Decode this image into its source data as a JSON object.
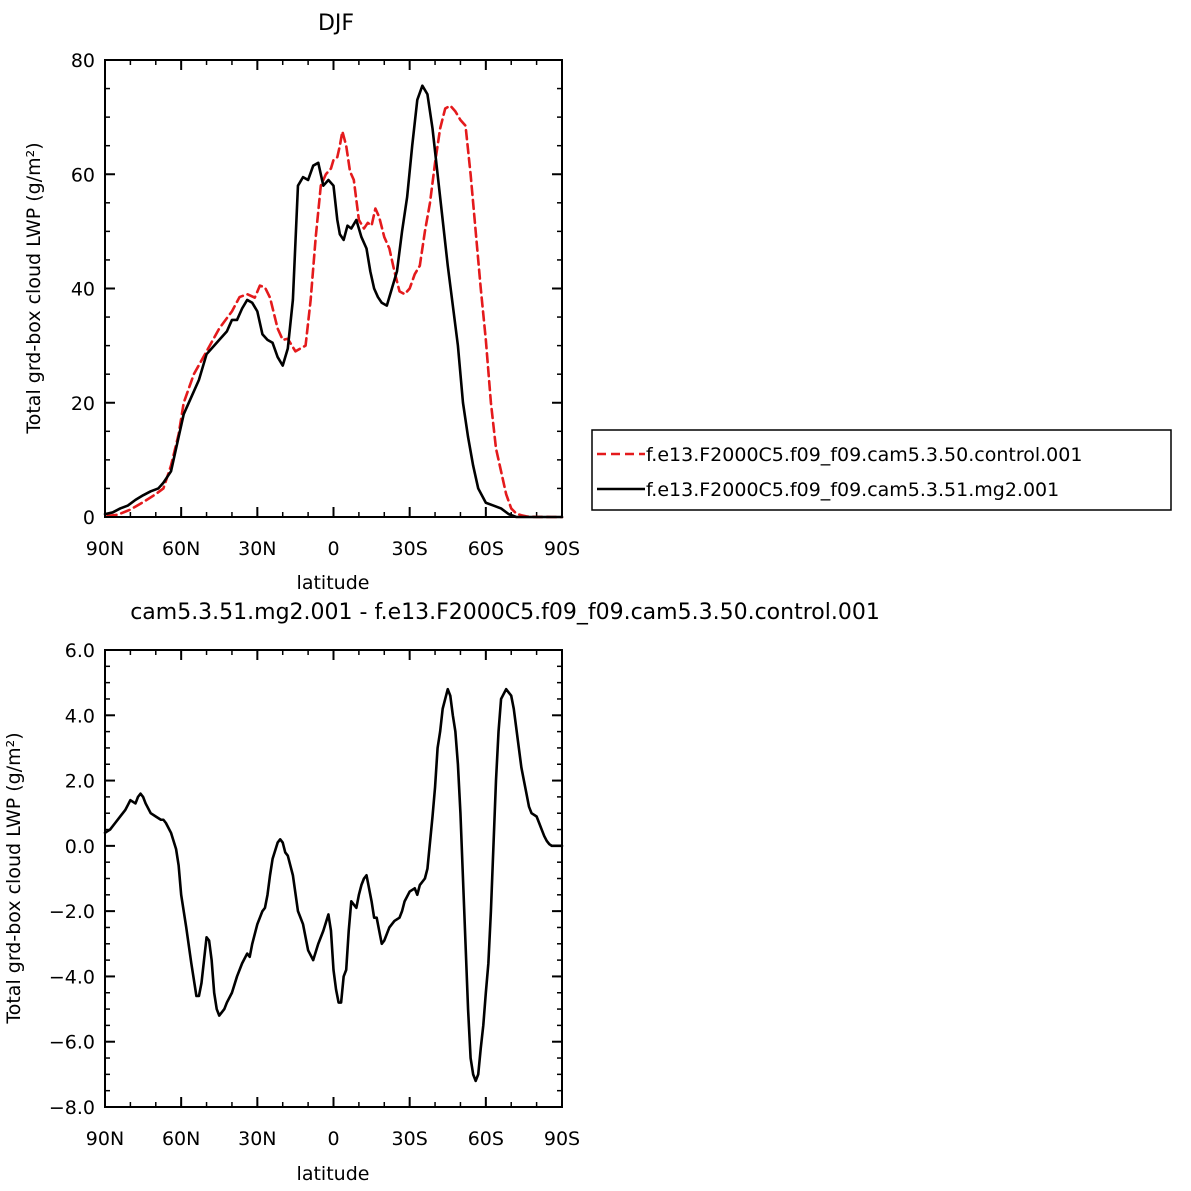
{
  "chart_data": [
    {
      "type": "line",
      "title": "DJF",
      "xlabel": "latitude",
      "ylabel": "Total grd-box cloud LWP (g/m²)",
      "xlim": [
        -90,
        90
      ],
      "ylim": [
        0,
        80
      ],
      "x_ticks": [
        -90,
        -60,
        -30,
        0,
        30,
        60,
        90
      ],
      "x_tick_labels": [
        "90N",
        "60N",
        "30N",
        "0",
        "30S",
        "60S",
        "90S"
      ],
      "y_ticks": [
        0,
        20,
        40,
        60,
        80
      ],
      "y_tick_labels": [
        "0",
        "20",
        "40",
        "60",
        "80"
      ],
      "legend_position": "right",
      "series": [
        {
          "name": "f.e13.F2000C5.f09_f09.cam5.3.50.control.001",
          "color": "#e41a1c",
          "dash": "dashed",
          "x": [
            -89,
            -85,
            -80,
            -75,
            -70,
            -67,
            -64,
            -61,
            -59,
            -55,
            -50,
            -45,
            -40,
            -37,
            -34,
            -31,
            -29,
            -27,
            -25,
            -22,
            -20,
            -18,
            -15,
            -13,
            -11,
            -9,
            -7,
            -5,
            -3,
            -1,
            0,
            1.5,
            2.5,
            3.5,
            5,
            6.5,
            8,
            10,
            12,
            13.5,
            15,
            16.5,
            18,
            20,
            22,
            24,
            26,
            28,
            30,
            32,
            34,
            36,
            38,
            40,
            42,
            44,
            46,
            48,
            50,
            52,
            54,
            56,
            58,
            60,
            62,
            64,
            66,
            68,
            70,
            72,
            74,
            76,
            78,
            80,
            82,
            84,
            86,
            88,
            90
          ],
          "y": [
            0.2,
            0.4,
            1.3,
            2.6,
            4.0,
            5.0,
            9.0,
            14.5,
            20.0,
            25.0,
            29.0,
            33.0,
            36.0,
            38.5,
            39.0,
            38.4,
            40.5,
            40.2,
            38.4,
            33.0,
            31.0,
            31.2,
            29.0,
            29.5,
            30.0,
            38.0,
            49.0,
            58.0,
            60.0,
            61.0,
            62.5,
            63.0,
            65.0,
            67.5,
            65.0,
            60.5,
            59.0,
            52.0,
            50.5,
            51.5,
            51.0,
            54.0,
            52.5,
            49.0,
            47.0,
            43.0,
            39.5,
            39.0,
            40.0,
            42.5,
            44.0,
            50.0,
            55.0,
            62.0,
            68.0,
            71.5,
            72.0,
            71.0,
            69.5,
            68.5,
            60.0,
            50.0,
            40.0,
            31.0,
            20.0,
            12.0,
            8.0,
            4.0,
            1.5,
            0.6,
            0.3,
            0.1,
            0.05,
            0.02,
            0.01,
            0.01,
            0.0,
            0.0,
            0.0
          ]
        },
        {
          "name": "f.e13.F2000C5.f09_f09.cam5.3.51.mg2.001",
          "color": "#000000",
          "dash": "solid",
          "x": [
            -90,
            -87,
            -84,
            -81,
            -78,
            -75,
            -72,
            -69,
            -67,
            -64,
            -61,
            -59,
            -56,
            -53,
            -50,
            -47,
            -45,
            -42,
            -40,
            -38,
            -36,
            -34,
            -32,
            -30,
            -28,
            -26,
            -24,
            -22,
            -20,
            -18,
            -16,
            -14,
            -12,
            -10,
            -8,
            -6,
            -4,
            -2,
            0,
            1.5,
            2.5,
            4,
            5.5,
            7,
            9,
            11,
            13,
            14.5,
            16,
            17.5,
            19,
            21,
            23,
            25,
            27,
            29,
            31,
            33,
            35,
            37,
            39,
            41,
            43,
            45,
            47,
            49,
            51,
            53,
            55,
            57,
            60,
            63,
            66,
            69,
            72,
            75,
            78,
            81,
            84,
            87,
            88,
            90
          ],
          "y": [
            0.5,
            0.8,
            1.5,
            2.0,
            3.0,
            3.8,
            4.5,
            5.0,
            6.0,
            8.0,
            14.0,
            18.0,
            21.0,
            24.0,
            28.5,
            30.0,
            31.0,
            32.5,
            34.5,
            34.5,
            36.5,
            38.0,
            37.5,
            36.0,
            32.0,
            31.0,
            30.5,
            28.0,
            26.5,
            29.5,
            38.0,
            58.0,
            59.5,
            59.0,
            61.5,
            62.0,
            58.0,
            59.0,
            58.0,
            52.0,
            49.5,
            48.5,
            51.0,
            50.5,
            52.0,
            49.0,
            47.0,
            43.0,
            40.0,
            38.5,
            37.5,
            37.0,
            40.0,
            43.0,
            50.0,
            56.0,
            65.0,
            73.0,
            75.5,
            74.0,
            68.0,
            60.0,
            52.0,
            44.0,
            37.0,
            30.0,
            20.0,
            14.0,
            9.0,
            5.0,
            2.5,
            2.0,
            1.5,
            0.5,
            0.0,
            0.0,
            0.0,
            0.0,
            0.0,
            0.0,
            0.0,
            0.0
          ]
        }
      ]
    },
    {
      "type": "line",
      "title": "cam5.3.51.mg2.001 - f.e13.F2000C5.f09_f09.cam5.3.50.control.001",
      "xlabel": "latitude",
      "ylabel": "Total grd-box cloud LWP (g/m²)",
      "xlim": [
        -90,
        90
      ],
      "ylim": [
        -8,
        6
      ],
      "x_ticks": [
        -90,
        -60,
        -30,
        0,
        30,
        60,
        90
      ],
      "x_tick_labels": [
        "90N",
        "60N",
        "30N",
        "0",
        "30S",
        "60S",
        "90S"
      ],
      "y_ticks": [
        -8,
        -6,
        -4,
        -2,
        0,
        2,
        4,
        6
      ],
      "y_tick_labels": [
        "−8.0",
        "−6.0",
        "−4.0",
        "−2.0",
        "0.0",
        "2.0",
        "4.0",
        "6.0"
      ],
      "series": [
        {
          "color": "#000000",
          "dash": "solid",
          "x": [
            -90,
            -88,
            -86,
            -84,
            -82,
            -80,
            -78,
            -77,
            -76,
            -75,
            -74,
            -72,
            -70,
            -68,
            -67,
            -66,
            -64,
            -62,
            -61,
            -60,
            -58,
            -56,
            -54,
            -53,
            -52,
            -51,
            -50,
            -49,
            -48,
            -47,
            -46,
            -45,
            -44,
            -43,
            -42,
            -40,
            -38,
            -36,
            -34,
            -33,
            -32,
            -30,
            -29,
            -28,
            -27,
            -26,
            -25,
            -24,
            -22,
            -21,
            -20,
            -19,
            -18,
            -17,
            -16,
            -14,
            -12,
            -10,
            -8,
            -6,
            -5,
            -4,
            -2,
            -1,
            0,
            1,
            2,
            3,
            4,
            5,
            6,
            7,
            8,
            9,
            10,
            11,
            12,
            13,
            14,
            15,
            16,
            17,
            18,
            19,
            20,
            22,
            24,
            26,
            27,
            28,
            30,
            32,
            33,
            34,
            36,
            37,
            38,
            39,
            40,
            41,
            42,
            43,
            44,
            45,
            46,
            47,
            48,
            49,
            50,
            51,
            52,
            53,
            54,
            55,
            56,
            57,
            58,
            59,
            60,
            61,
            62,
            63,
            64,
            65,
            66,
            68,
            70,
            71,
            72,
            73,
            74,
            75,
            76,
            77,
            78,
            80,
            81,
            82,
            83,
            84,
            85,
            86,
            87,
            88,
            90
          ],
          "y": [
            0.4,
            0.5,
            0.7,
            0.9,
            1.1,
            1.4,
            1.3,
            1.5,
            1.6,
            1.5,
            1.3,
            1.0,
            0.9,
            0.8,
            0.8,
            0.7,
            0.4,
            -0.1,
            -0.6,
            -1.5,
            -2.5,
            -3.6,
            -4.6,
            -4.6,
            -4.2,
            -3.5,
            -2.8,
            -2.9,
            -3.5,
            -4.5,
            -5.0,
            -5.2,
            -5.1,
            -5.0,
            -4.8,
            -4.5,
            -4.0,
            -3.6,
            -3.3,
            -3.4,
            -3.0,
            -2.4,
            -2.2,
            -2.0,
            -1.9,
            -1.5,
            -0.9,
            -0.4,
            0.1,
            0.2,
            0.1,
            -0.2,
            -0.3,
            -0.6,
            -0.9,
            -2.0,
            -2.4,
            -3.2,
            -3.5,
            -3.0,
            -2.8,
            -2.6,
            -2.1,
            -2.6,
            -3.8,
            -4.4,
            -4.8,
            -4.8,
            -4.0,
            -3.8,
            -2.6,
            -1.7,
            -1.8,
            -1.9,
            -1.5,
            -1.2,
            -1.0,
            -0.9,
            -1.3,
            -1.7,
            -2.2,
            -2.2,
            -2.6,
            -3.0,
            -2.9,
            -2.5,
            -2.3,
            -2.2,
            -2.0,
            -1.7,
            -1.4,
            -1.3,
            -1.5,
            -1.2,
            -1.0,
            -0.7,
            0.1,
            0.9,
            1.8,
            3.0,
            3.5,
            4.2,
            4.5,
            4.8,
            4.6,
            4.0,
            3.5,
            2.5,
            1.0,
            -1.0,
            -3.0,
            -5.0,
            -6.5,
            -7.0,
            -7.2,
            -7.0,
            -6.2,
            -5.5,
            -4.5,
            -3.6,
            -2.0,
            0.0,
            2.0,
            3.5,
            4.5,
            4.8,
            4.6,
            4.2,
            3.6,
            3.0,
            2.4,
            2.0,
            1.6,
            1.2,
            1.0,
            0.9,
            0.7,
            0.5,
            0.3,
            0.15,
            0.05,
            0.0,
            0.0,
            0.0,
            0.0
          ]
        }
      ]
    }
  ]
}
